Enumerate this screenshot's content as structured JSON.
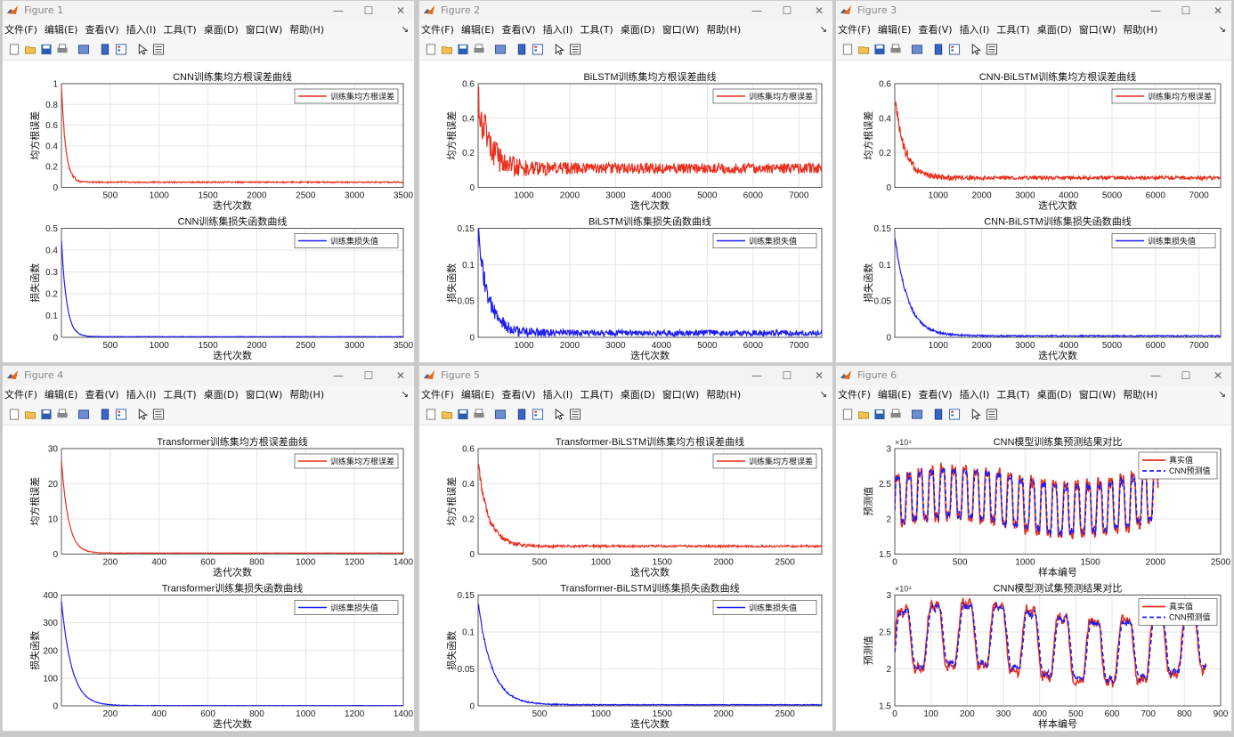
{
  "menu": {
    "items": [
      "文件(F)",
      "编辑(E)",
      "查看(V)",
      "插入(I)",
      "工具(T)",
      "桌面(D)",
      "窗口(W)",
      "帮助(H)"
    ],
    "arrow": "↘"
  },
  "window_controls": {
    "minimize": "—",
    "maximize": "☐",
    "close": "✕"
  },
  "windows": [
    {
      "title": "Figure 1",
      "plots": [
        {
          "title": "CNN训练集均方根误差曲线",
          "xlabel": "迭代次数",
          "ylabel": "均方根误差",
          "legend": "训练集均方根误差",
          "color": "#e8301f",
          "ylim": [
            0,
            1
          ],
          "yticks": [
            "0",
            "0.2",
            "0.4",
            "0.6",
            "0.8",
            "1"
          ],
          "xlim": [
            0,
            3500
          ],
          "xticks": [
            "500",
            "1000",
            "1500",
            "2000",
            "2500",
            "3000",
            "3500"
          ],
          "start": 1.0,
          "floor": 0.05,
          "noise": 0.006,
          "decay": 0.012
        },
        {
          "title": "CNN训练集损失函数曲线",
          "xlabel": "迭代次数",
          "ylabel": "损失函数",
          "legend": "训练集损失值",
          "color": "#1d1df0",
          "ylim": [
            0,
            0.5
          ],
          "yticks": [
            "0",
            "0.1",
            "0.2",
            "0.3",
            "0.4",
            "0.5"
          ],
          "xlim": [
            0,
            3500
          ],
          "xticks": [
            "500",
            "1000",
            "1500",
            "2000",
            "2500",
            "3000",
            "3500"
          ],
          "start": 0.45,
          "floor": 0.003,
          "noise": 0.001,
          "decay": 0.015
        }
      ]
    },
    {
      "title": "Figure 2",
      "plots": [
        {
          "title": "BiLSTM训练集均方根误差曲线",
          "xlabel": "迭代次数",
          "ylabel": "均方根误差",
          "legend": "训练集均方根误差",
          "color": "#e8301f",
          "ylim": [
            0,
            0.6
          ],
          "yticks": [
            "0",
            "0.2",
            "0.4",
            "0.6"
          ],
          "xlim": [
            0,
            7500
          ],
          "xticks": [
            "1000",
            "2000",
            "3000",
            "4000",
            "5000",
            "6000",
            "7000"
          ],
          "start": 0.52,
          "floor": 0.11,
          "noise": 0.03,
          "decay": 0.03
        },
        {
          "title": "BiLSTM训练集损失函数曲线",
          "xlabel": "迭代次数",
          "ylabel": "损失函数",
          "legend": "训练集损失值",
          "color": "#1d1df0",
          "ylim": [
            0,
            0.15
          ],
          "yticks": [
            "0",
            "0.05",
            "0.1",
            "0.15"
          ],
          "xlim": [
            0,
            7500
          ],
          "xticks": [
            "1000",
            "2000",
            "3000",
            "4000",
            "5000",
            "6000",
            "7000"
          ],
          "start": 0.14,
          "floor": 0.006,
          "noise": 0.004,
          "decay": 0.03
        }
      ]
    },
    {
      "title": "Figure 3",
      "plots": [
        {
          "title": "CNN-BiLSTM训练集均方根误差曲线",
          "xlabel": "迭代次数",
          "ylabel": "均方根误差",
          "legend": "训练集均方根误差",
          "color": "#e8301f",
          "ylim": [
            0,
            0.6
          ],
          "yticks": [
            "0",
            "0.2",
            "0.4",
            "0.6"
          ],
          "xlim": [
            0,
            7500
          ],
          "xticks": [
            "1000",
            "2000",
            "3000",
            "4000",
            "5000",
            "6000",
            "7000"
          ],
          "start": 0.52,
          "floor": 0.055,
          "noise": 0.01,
          "decay": 0.03
        },
        {
          "title": "CNN-BiLSTM训练集损失函数曲线",
          "xlabel": "迭代次数",
          "ylabel": "损失函数",
          "legend": "训练集损失值",
          "color": "#1d1df0",
          "ylim": [
            0,
            0.15
          ],
          "yticks": [
            "0",
            "0.05",
            "0.1",
            "0.15"
          ],
          "xlim": [
            0,
            7500
          ],
          "xticks": [
            "1000",
            "2000",
            "3000",
            "4000",
            "5000",
            "6000",
            "7000"
          ],
          "start": 0.14,
          "floor": 0.002,
          "noise": 0.0008,
          "decay": 0.04
        }
      ]
    },
    {
      "title": "Figure 4",
      "plots": [
        {
          "title": "Transformer训练集均方根误差曲线",
          "xlabel": "迭代次数",
          "ylabel": "均方根误差",
          "legend": "训练集均方根误差",
          "color": "#e8301f",
          "ylim": [
            0,
            30
          ],
          "yticks": [
            "0",
            "10",
            "20",
            "30"
          ],
          "xlim": [
            0,
            1400
          ],
          "xticks": [
            "200",
            "400",
            "600",
            "800",
            "1000",
            "1200",
            "1400"
          ],
          "start": 27,
          "floor": 0.3,
          "noise": 0.05,
          "decay": 0.02
        },
        {
          "title": "Transformer训练集损失函数曲线",
          "xlabel": "迭代次数",
          "ylabel": "损失函数",
          "legend": "训练集损失值",
          "color": "#1d1df0",
          "ylim": [
            0,
            400
          ],
          "yticks": [
            "0",
            "100",
            "200",
            "300",
            "400"
          ],
          "xlim": [
            0,
            1400
          ],
          "xticks": [
            "200",
            "400",
            "600",
            "800",
            "1000",
            "1200",
            "1400"
          ],
          "start": 380,
          "floor": 1,
          "noise": 0.5,
          "decay": 0.03
        }
      ]
    },
    {
      "title": "Figure 5",
      "plots": [
        {
          "title": "Transformer-BiLSTM训练集均方根误差曲线",
          "xlabel": "迭代次数",
          "ylabel": "均方根误差",
          "legend": "训练集均方根误差",
          "color": "#e8301f",
          "ylim": [
            0,
            0.6
          ],
          "yticks": [
            "0",
            "0.2",
            "0.4",
            "0.6"
          ],
          "xlim": [
            0,
            2800
          ],
          "xticks": [
            "500",
            "1000",
            "1500",
            "2000",
            "2500"
          ],
          "start": 0.52,
          "floor": 0.045,
          "noise": 0.006,
          "decay": 0.03
        },
        {
          "title": "Transformer-BiLSTM训练集损失函数曲线",
          "xlabel": "迭代次数",
          "ylabel": "损失函数",
          "legend": "训练集损失值",
          "color": "#1d1df0",
          "ylim": [
            0,
            0.15
          ],
          "yticks": [
            "0",
            "0.05",
            "0.1",
            "0.15"
          ],
          "xlim": [
            0,
            2800
          ],
          "xticks": [
            "500",
            "1000",
            "1500",
            "2000",
            "2500"
          ],
          "start": 0.14,
          "floor": 0.0015,
          "noise": 0.0005,
          "decay": 0.04
        }
      ]
    },
    {
      "title": "Figure 6",
      "plots": [
        {
          "kind": "compare",
          "title": "CNN模型训练集预测结果对比",
          "xlabel": "样本编号",
          "ylabel": "预测值",
          "legend": [
            "真实值",
            "CNN预测值"
          ],
          "exponent": "×10⁴",
          "ylim": [
            1.5,
            3
          ],
          "yticks": [
            "1.5",
            "2",
            "2.5",
            "3"
          ],
          "xlim": [
            0,
            2500
          ],
          "xticks": [
            "0",
            "500",
            "1000",
            "1500",
            "2000",
            "2500"
          ],
          "nmax": 2020,
          "period": 86,
          "base": 2.25,
          "amp": 0.42
        },
        {
          "kind": "compare",
          "title": "CNN模型测试集预测结果对比",
          "xlabel": "样本编号",
          "ylabel": "预测值",
          "legend": [
            "真实值",
            "CNN预测值"
          ],
          "exponent": "×10⁴",
          "ylim": [
            1.5,
            3
          ],
          "yticks": [
            "1.5",
            "2",
            "2.5",
            "3"
          ],
          "xlim": [
            0,
            900
          ],
          "xticks": [
            "0",
            "100",
            "200",
            "300",
            "400",
            "500",
            "600",
            "700",
            "800",
            "900"
          ],
          "nmax": 860,
          "period": 88,
          "base": 2.35,
          "amp": 0.5
        }
      ]
    }
  ]
}
